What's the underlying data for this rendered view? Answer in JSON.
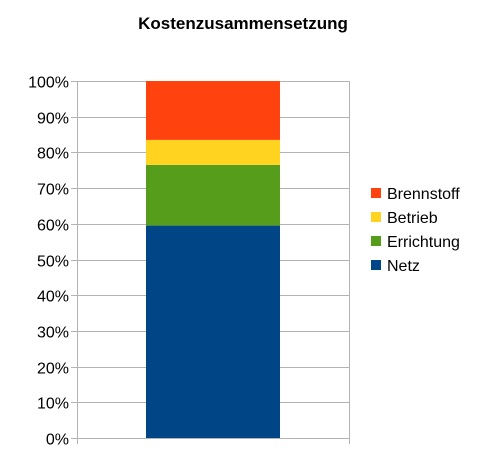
{
  "chart_data": {
    "type": "bar",
    "stacked": true,
    "percent_stacked": true,
    "title": "Kostenzusammensetzung",
    "xlabel": "",
    "ylabel": "",
    "ylim": [
      0,
      100
    ],
    "y_ticks": [
      "0%",
      "10%",
      "20%",
      "30%",
      "40%",
      "50%",
      "60%",
      "70%",
      "80%",
      "90%",
      "100%"
    ],
    "categories": [
      ""
    ],
    "series": [
      {
        "name": "Netz",
        "values": [
          59.5
        ],
        "color": "#004586"
      },
      {
        "name": "Errichtung",
        "values": [
          17
        ],
        "color": "#579D1C"
      },
      {
        "name": "Betrieb",
        "values": [
          7
        ],
        "color": "#FFD320"
      },
      {
        "name": "Brennstoff",
        "values": [
          16.5
        ],
        "color": "#FF420E"
      }
    ],
    "legend": {
      "position": "right",
      "order": [
        "Brennstoff",
        "Betrieb",
        "Errichtung",
        "Netz"
      ]
    },
    "grid": true
  }
}
